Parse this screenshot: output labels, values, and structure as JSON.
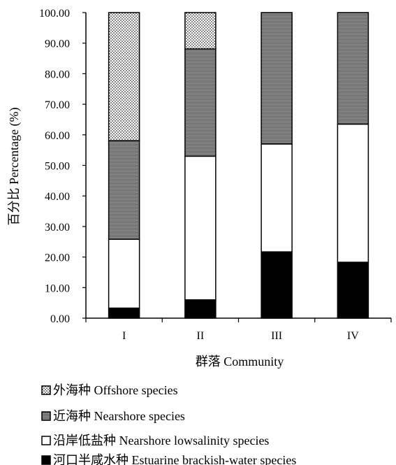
{
  "chart_data": {
    "type": "bar",
    "stacked": true,
    "title": "",
    "xlabel": "群落 Community",
    "ylabel": "百分比 Percentage (%)",
    "categories": [
      "I",
      "II",
      "III",
      "IV"
    ],
    "ylim": [
      0,
      100
    ],
    "yticks": [
      "0.00",
      "10.00",
      "20.00",
      "30.00",
      "40.00",
      "50.00",
      "60.00",
      "70.00",
      "80.00",
      "90.00",
      "100.00"
    ],
    "grid": false,
    "legend_position": "bottom",
    "series": [
      {
        "name": "河口半咸水种 Estuarine brackish-water species",
        "fill": "black",
        "values": [
          3.3,
          6.0,
          21.7,
          18.3
        ]
      },
      {
        "name": "沿岸低盐种 Nearshore lowsalinity species",
        "fill": "white",
        "values": [
          22.5,
          47.0,
          35.3,
          45.2
        ]
      },
      {
        "name": "近海种 Nearshore species",
        "fill": "striped-gray",
        "values": [
          32.3,
          35.1,
          43.0,
          36.5
        ]
      },
      {
        "name": "外海种 Offshore species",
        "fill": "dotted",
        "values": [
          41.9,
          11.9,
          0.0,
          0.0
        ]
      }
    ],
    "legend_order": [
      3,
      2,
      1,
      0
    ]
  }
}
